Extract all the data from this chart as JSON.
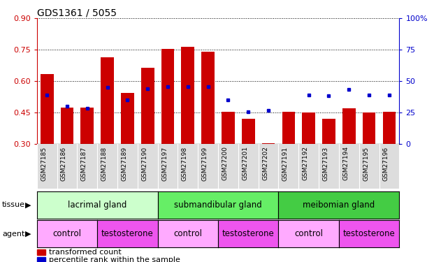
{
  "title": "GDS1361 / 5055",
  "samples": [
    "GSM27185",
    "GSM27186",
    "GSM27187",
    "GSM27188",
    "GSM27189",
    "GSM27190",
    "GSM27197",
    "GSM27198",
    "GSM27199",
    "GSM27200",
    "GSM27201",
    "GSM27202",
    "GSM27191",
    "GSM27192",
    "GSM27193",
    "GSM27194",
    "GSM27195",
    "GSM27196"
  ],
  "red_values": [
    0.635,
    0.475,
    0.475,
    0.715,
    0.545,
    0.665,
    0.755,
    0.765,
    0.74,
    0.455,
    0.42,
    0.305,
    0.455,
    0.45,
    0.42,
    0.47,
    0.45,
    0.455
  ],
  "blue_values": [
    0.535,
    0.48,
    0.47,
    0.57,
    0.51,
    0.565,
    0.575,
    0.575,
    0.575,
    0.51,
    0.455,
    0.46,
    null,
    0.535,
    0.53,
    0.56,
    0.535,
    0.535
  ],
  "ylim_left": [
    0.3,
    0.9
  ],
  "ylim_right": [
    0,
    100
  ],
  "yticks_left": [
    0.3,
    0.45,
    0.6,
    0.75,
    0.9
  ],
  "yticks_right": [
    0,
    25,
    50,
    75,
    100
  ],
  "bar_color": "#cc0000",
  "dot_color": "#0000cc",
  "tissue_groups": [
    {
      "label": "lacrimal gland",
      "start": 0,
      "end": 6,
      "color": "#ccffcc"
    },
    {
      "label": "submandibular gland",
      "start": 6,
      "end": 12,
      "color": "#66ee66"
    },
    {
      "label": "meibomian gland",
      "start": 12,
      "end": 18,
      "color": "#44cc44"
    }
  ],
  "agent_groups": [
    {
      "label": "control",
      "start": 0,
      "end": 3,
      "color": "#ffaaff"
    },
    {
      "label": "testosterone",
      "start": 3,
      "end": 6,
      "color": "#ee55ee"
    },
    {
      "label": "control",
      "start": 6,
      "end": 9,
      "color": "#ffaaff"
    },
    {
      "label": "testosterone",
      "start": 9,
      "end": 12,
      "color": "#ee55ee"
    },
    {
      "label": "control",
      "start": 12,
      "end": 15,
      "color": "#ffaaff"
    },
    {
      "label": "testosterone",
      "start": 15,
      "end": 18,
      "color": "#ee55ee"
    }
  ],
  "legend_red": "transformed count",
  "legend_blue": "percentile rank within the sample",
  "tissue_label": "tissue",
  "agent_label": "agent",
  "xtick_bg": "#dddddd"
}
